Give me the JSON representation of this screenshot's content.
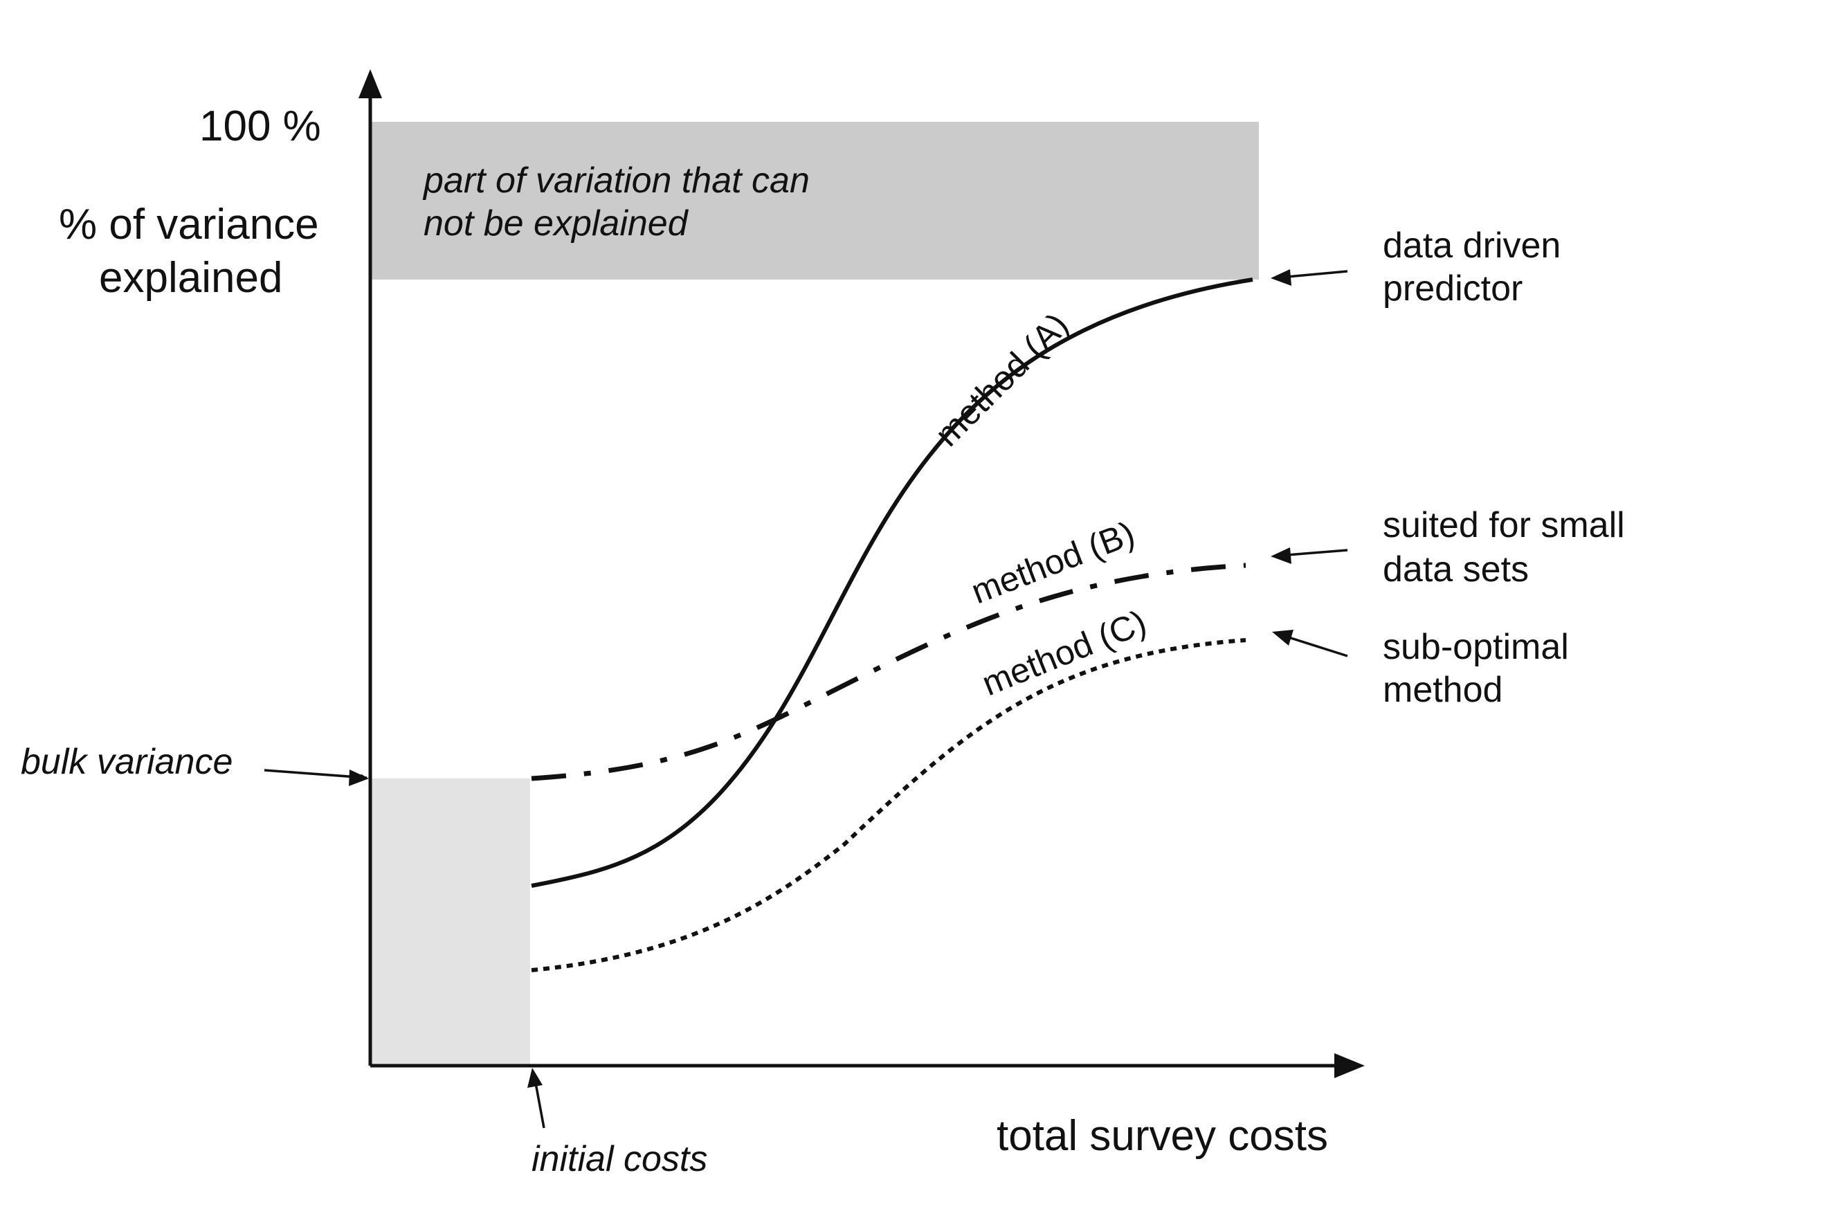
{
  "diagram": {
    "y_axis": {
      "top_label": "100 %",
      "title_line1": "% of variance",
      "title_line2": "explained"
    },
    "x_axis": {
      "title": "total survey costs"
    },
    "unexplained_region": {
      "line1": "part of variation that can",
      "line2": "not be explained",
      "color": "#cbcbcb"
    },
    "bulk_region": {
      "color": "#e3e3e3"
    },
    "annotations": {
      "bulk_variance": "bulk variance",
      "initial_costs": "initial costs"
    },
    "curves": [
      {
        "id": "A",
        "label": "method (A)",
        "style": "solid",
        "note_line1": "data driven",
        "note_line2": "predictor"
      },
      {
        "id": "B",
        "label": "method (B)",
        "style": "dash-dot",
        "note_line1": "suited for small",
        "note_line2": "data sets"
      },
      {
        "id": "C",
        "label": "method (C)",
        "style": "dotted",
        "note_line1": "sub-optimal",
        "note_line2": "method"
      }
    ]
  }
}
